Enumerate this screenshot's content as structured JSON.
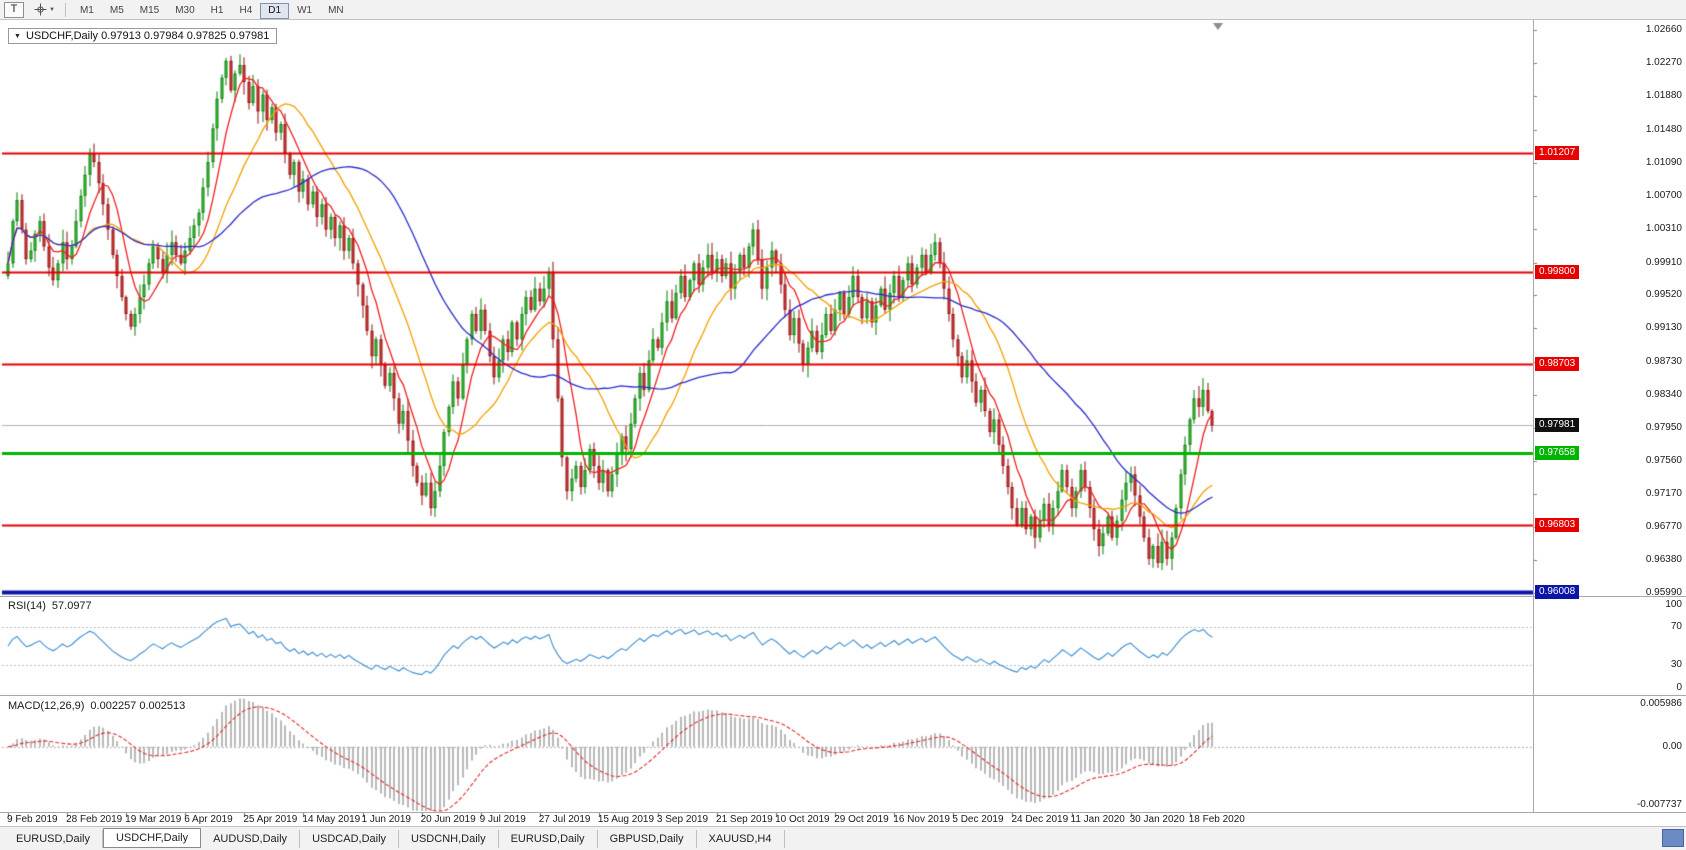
{
  "toolbar": {
    "t_button_label": "T",
    "cursor_icon": "crosshair-icon",
    "dropdown_icon": "chevron-down-icon",
    "timeframes": [
      "M1",
      "M5",
      "M15",
      "M30",
      "H1",
      "H4",
      "D1",
      "W1",
      "MN"
    ],
    "active_timeframe": "D1"
  },
  "chart": {
    "symbol": "USDCHF",
    "timeframe": "Daily",
    "info_label": "USDCHF,Daily 0.97913 0.97984 0.97825 0.97981",
    "ohlc": {
      "open": "0.97913",
      "high": "0.97984",
      "low": "0.97825",
      "close": "0.97981"
    },
    "shift_marker_icon": "triangle-down-icon"
  },
  "price_axis": {
    "ticks": [
      "1.02660",
      "1.02270",
      "1.01880",
      "1.01480",
      "1.01090",
      "1.00700",
      "1.00310",
      "0.99910",
      "0.99520",
      "0.99130",
      "0.98730",
      "0.98340",
      "0.97950",
      "0.97560",
      "0.97170",
      "0.96770",
      "0.96380",
      "0.95990"
    ]
  },
  "rsi_panel": {
    "label": "RSI(14)",
    "value": "57.0977",
    "axis": [
      "100",
      "70",
      "30",
      "0"
    ]
  },
  "macd_panel": {
    "label": "MACD(12,26,9)",
    "values": "0.002257 0.002513",
    "axis": [
      "0.005986",
      "0.00",
      "-0.007737"
    ]
  },
  "time_axis": {
    "labels": [
      "9 Feb 2019",
      "28 Feb 2019",
      "19 Mar 2019",
      "6 Apr 2019",
      "25 Apr 2019",
      "14 May 2019",
      "1 Jun 2019",
      "20 Jun 2019",
      "9 Jul 2019",
      "27 Jul 2019",
      "15 Aug 2019",
      "3 Sep 2019",
      "21 Sep 2019",
      "10 Oct 2019",
      "29 Oct 2019",
      "16 Nov 2019",
      "5 Dec 2019",
      "24 Dec 2019",
      "11 Jan 2020",
      "30 Jan 2020",
      "18 Feb 2020"
    ]
  },
  "tabs": {
    "items": [
      "EURUSD,Daily",
      "USDCHF,Daily",
      "AUDUSD,Daily",
      "USDCAD,Daily",
      "USDCNH,Daily",
      "EURUSD,Daily",
      "GBPUSD,Daily",
      "XAUUSD,H4"
    ],
    "active_index": 1
  },
  "chart_data": {
    "type": "candlestick",
    "symbol": "USDCHF",
    "timeframe": "Daily",
    "x_labels": [
      "9 Feb 2019",
      "28 Feb 2019",
      "19 Mar 2019",
      "6 Apr 2019",
      "25 Apr 2019",
      "14 May 2019",
      "1 Jun 2019",
      "20 Jun 2019",
      "9 Jul 2019",
      "27 Jul 2019",
      "15 Aug 2019",
      "3 Sep 2019",
      "21 Sep 2019",
      "10 Oct 2019",
      "29 Oct 2019",
      "16 Nov 2019",
      "5 Dec 2019",
      "24 Dec 2019",
      "11 Jan 2020",
      "30 Jan 2020",
      "18 Feb 2020"
    ],
    "label_step": 13,
    "y_range": [
      0.9597,
      1.0276
    ],
    "first_open": 0.9975,
    "closes": [
      0.999,
      1.004,
      1.0065,
      1.003,
      0.9995,
      1.0005,
      1.0025,
      1.004,
      1.001,
      0.9985,
      0.997,
      0.999,
      1.0015,
      0.9995,
      1.001,
      1.004,
      1.007,
      1.0095,
      1.012,
      1.011,
      1.0085,
      1.006,
      1.003,
      1.0,
      0.9975,
      0.995,
      0.993,
      0.9915,
      0.993,
      0.995,
      0.9965,
      0.999,
      1.001,
      0.9995,
      0.998,
      1.0,
      1.0015,
      1.0,
      0.999,
      1.0005,
      1.002,
      1.0035,
      1.005,
      1.008,
      1.011,
      1.015,
      1.0185,
      1.021,
      1.023,
      1.0195,
      1.0215,
      1.0225,
      1.0205,
      1.018,
      1.02,
      1.017,
      1.019,
      1.016,
      1.0175,
      1.0145,
      1.0155,
      1.012,
      1.0095,
      1.011,
      1.0075,
      1.009,
      1.006,
      1.0075,
      1.0045,
      1.006,
      1.003,
      1.0045,
      1.002,
      1.0035,
      1.0005,
      1.002,
      0.999,
      0.9965,
      0.994,
      0.991,
      0.988,
      0.99,
      0.987,
      0.9845,
      0.986,
      0.983,
      0.98,
      0.9815,
      0.978,
      0.975,
      0.973,
      0.9715,
      0.973,
      0.97,
      0.972,
      0.975,
      0.979,
      0.982,
      0.985,
      0.983,
      0.987,
      0.99,
      0.993,
      0.991,
      0.9935,
      0.991,
      0.988,
      0.9855,
      0.9875,
      0.99,
      0.9885,
      0.992,
      0.99,
      0.993,
      0.995,
      0.9935,
      0.996,
      0.9945,
      0.996,
      0.998,
      0.99,
      0.983,
      0.976,
      0.972,
      0.9735,
      0.975,
      0.9725,
      0.9745,
      0.977,
      0.975,
      0.973,
      0.9745,
      0.972,
      0.974,
      0.9765,
      0.9785,
      0.977,
      0.98,
      0.983,
      0.986,
      0.984,
      0.9875,
      0.99,
      0.989,
      0.992,
      0.9945,
      0.9925,
      0.9955,
      0.9975,
      0.995,
      0.997,
      0.999,
      0.9965,
      0.9985,
      1.0,
      0.998,
      0.9995,
      0.9975,
      0.999,
      0.996,
      0.998,
      1.0,
      0.9985,
      1.001,
      1.003,
      0.9995,
      0.996,
      0.9985,
      1.0005,
      0.999,
      0.9965,
      0.9935,
      0.9905,
      0.9925,
      0.9895,
      0.987,
      0.989,
      0.991,
      0.9885,
      0.9905,
      0.993,
      0.991,
      0.9935,
      0.9955,
      0.993,
      0.995,
      0.9975,
      0.995,
      0.9925,
      0.9945,
      0.992,
      0.994,
      0.996,
      0.9935,
      0.9955,
      0.9975,
      0.995,
      0.997,
      0.999,
      0.9965,
      0.9985,
      1.0,
      0.998,
      1.0,
      1.0015,
      0.999,
      0.996,
      0.993,
      0.99,
      0.988,
      0.9855,
      0.9875,
      0.985,
      0.9825,
      0.984,
      0.9815,
      0.979,
      0.9805,
      0.9775,
      0.975,
      0.9725,
      0.97,
      0.968,
      0.97,
      0.9675,
      0.969,
      0.9665,
      0.9685,
      0.9705,
      0.968,
      0.97,
      0.972,
      0.9745,
      0.9725,
      0.97,
      0.972,
      0.9745,
      0.9725,
      0.97,
      0.9675,
      0.9655,
      0.967,
      0.969,
      0.9665,
      0.9685,
      0.971,
      0.973,
      0.974,
      0.9715,
      0.969,
      0.9665,
      0.964,
      0.9655,
      0.9635,
      0.966,
      0.964,
      0.9665,
      0.97,
      0.974,
      0.9775,
      0.9805,
      0.983,
      0.982,
      0.984,
      0.9815,
      0.97981
    ],
    "style": {
      "bull_fill": "#46d046",
      "bull_border": "#0c7f0c",
      "bear_fill": "#e84444",
      "bear_border": "#8f1010",
      "current_price_line": "#b2b2b2",
      "current_price_badge": "#111111"
    },
    "moving_averages": [
      {
        "name": "ma-fast",
        "period": 7,
        "color": "#f02020"
      },
      {
        "name": "ma-medium",
        "period": 18,
        "color": "#f5a000"
      },
      {
        "name": "ma-slow",
        "period": 40,
        "color": "#2d2dcc"
      }
    ],
    "hlines": [
      {
        "label": "1.01207",
        "value": 1.01207,
        "color": "#e60000",
        "width": 2
      },
      {
        "label": "0.99800",
        "value": 0.998,
        "color": "#e60000",
        "width": 2
      },
      {
        "label": "0.98703",
        "value": 0.98703,
        "color": "#e60000",
        "width": 2
      },
      {
        "label": "0.96803",
        "value": 0.96803,
        "color": "#e60000",
        "width": 2
      },
      {
        "label": "0.97658",
        "value": 0.97658,
        "color": "#00b400",
        "width": 3
      },
      {
        "label": "0.96008",
        "value": 0.96008,
        "color": "#0b16a8",
        "width": 4
      }
    ],
    "current_price": 0.97981,
    "indicators": {
      "rsi": {
        "label": "RSI(14)",
        "period": 14,
        "current": 57.0977,
        "range": [
          0,
          100
        ],
        "guides": [
          70,
          30
        ],
        "color": "#3f8fd0"
      },
      "macd": {
        "label": "MACD(12,26,9)",
        "fast": 12,
        "slow": 26,
        "signal": 9,
        "main_current": 0.002257,
        "signal_current": 0.002513,
        "range": [
          -0.007737,
          0.005986
        ],
        "histogram_color": "#a9a9a9",
        "signal_color": "#e03030"
      }
    }
  }
}
